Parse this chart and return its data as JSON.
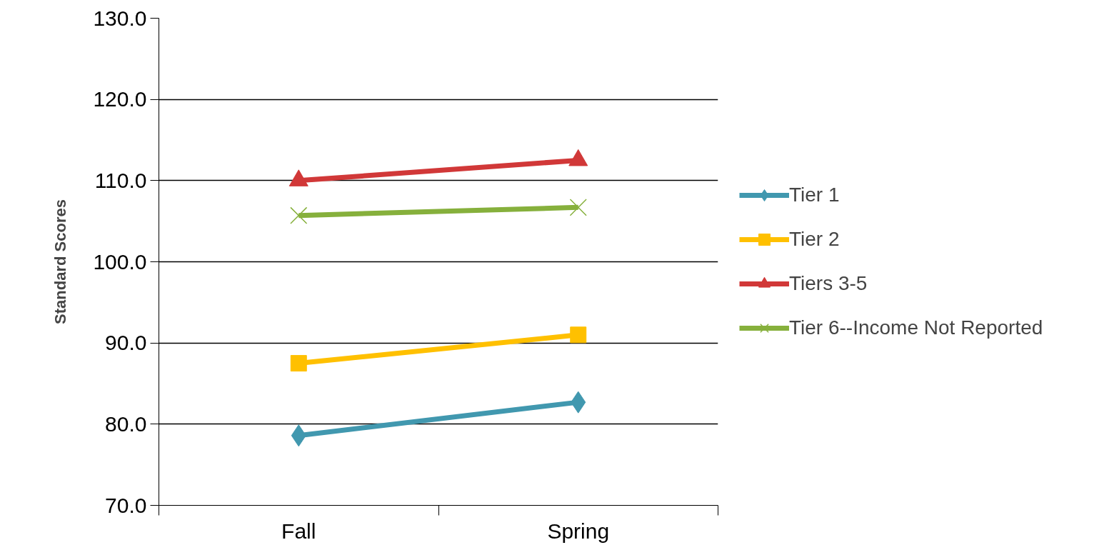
{
  "chart_data": {
    "type": "line",
    "ylabel": "Standard Scores",
    "categories": [
      "Fall",
      "Spring"
    ],
    "series": [
      {
        "name": "Tier 1",
        "color": "#4198af",
        "marker": "diamond",
        "values": [
          78.6,
          82.7
        ]
      },
      {
        "name": "Tier 2",
        "color": "#ffc000",
        "marker": "square",
        "values": [
          87.5,
          91.0
        ]
      },
      {
        "name": "Tiers 3-5",
        "color": "#d13838",
        "marker": "triangle",
        "values": [
          110.0,
          112.5
        ]
      },
      {
        "name": "Tier 6--Income Not Reported",
        "color": "#86b03c",
        "marker": "cross",
        "values": [
          105.7,
          106.7
        ]
      }
    ],
    "ylim": [
      70,
      130
    ],
    "yticks": [
      {
        "value": 70,
        "label": "70.0"
      },
      {
        "value": 80,
        "label": "80.0"
      },
      {
        "value": 90,
        "label": "90.0"
      },
      {
        "value": 100,
        "label": "100.0"
      },
      {
        "value": 110,
        "label": "110.0"
      },
      {
        "value": 120,
        "label": "120.0"
      },
      {
        "value": 130,
        "label": "130.0"
      }
    ],
    "grid": "y",
    "legend": "right",
    "line_style": "solid"
  }
}
